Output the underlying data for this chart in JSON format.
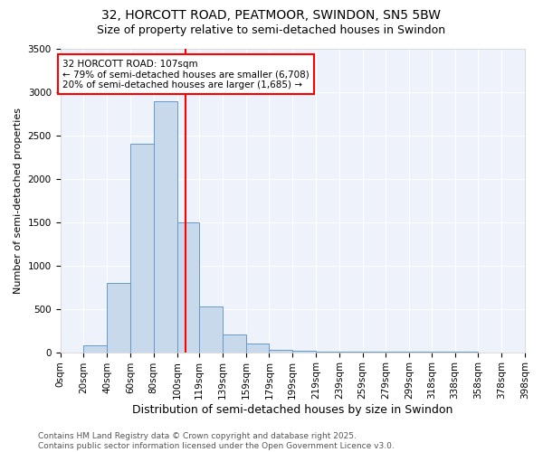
{
  "title_line1": "32, HORCOTT ROAD, PEATMOOR, SWINDON, SN5 5BW",
  "title_line2": "Size of property relative to semi-detached houses in Swindon",
  "bin_edges": [
    0,
    20,
    40,
    60,
    80,
    100,
    119,
    139,
    159,
    179,
    199,
    219,
    239,
    259,
    279,
    299,
    318,
    338,
    358,
    378,
    398
  ],
  "bar_heights": [
    0,
    75,
    800,
    2400,
    2900,
    1500,
    525,
    200,
    100,
    30,
    20,
    10,
    5,
    5,
    3,
    2,
    2,
    2,
    1,
    1
  ],
  "bar_color": "#c8d9ec",
  "bar_edgecolor": "#6699cc",
  "vline_x": 107,
  "vline_color": "red",
  "annotation_text": "32 HORCOTT ROAD: 107sqm\n← 79% of semi-detached houses are smaller (6,708)\n20% of semi-detached houses are larger (1,685) →",
  "annotation_box_color": "white",
  "annotation_box_edgecolor": "red",
  "ylabel": "Number of semi-detached properties",
  "xlabel": "Distribution of semi-detached houses by size in Swindon",
  "tick_labels": [
    "0sqm",
    "20sqm",
    "40sqm",
    "60sqm",
    "80sqm",
    "100sqm",
    "119sqm",
    "139sqm",
    "159sqm",
    "179sqm",
    "199sqm",
    "219sqm",
    "239sqm",
    "259sqm",
    "279sqm",
    "299sqm",
    "318sqm",
    "338sqm",
    "358sqm",
    "378sqm",
    "398sqm"
  ],
  "ylim": [
    0,
    3500
  ],
  "yticks": [
    0,
    500,
    1000,
    1500,
    2000,
    2500,
    3000,
    3500
  ],
  "background_color": "#eef2fb",
  "footer_text": "Contains HM Land Registry data © Crown copyright and database right 2025.\nContains public sector information licensed under the Open Government Licence v3.0.",
  "title_fontsize": 10,
  "subtitle_fontsize": 9,
  "xlabel_fontsize": 9,
  "ylabel_fontsize": 8,
  "tick_fontsize": 7.5,
  "footer_fontsize": 6.5,
  "annot_fontsize": 7.5
}
